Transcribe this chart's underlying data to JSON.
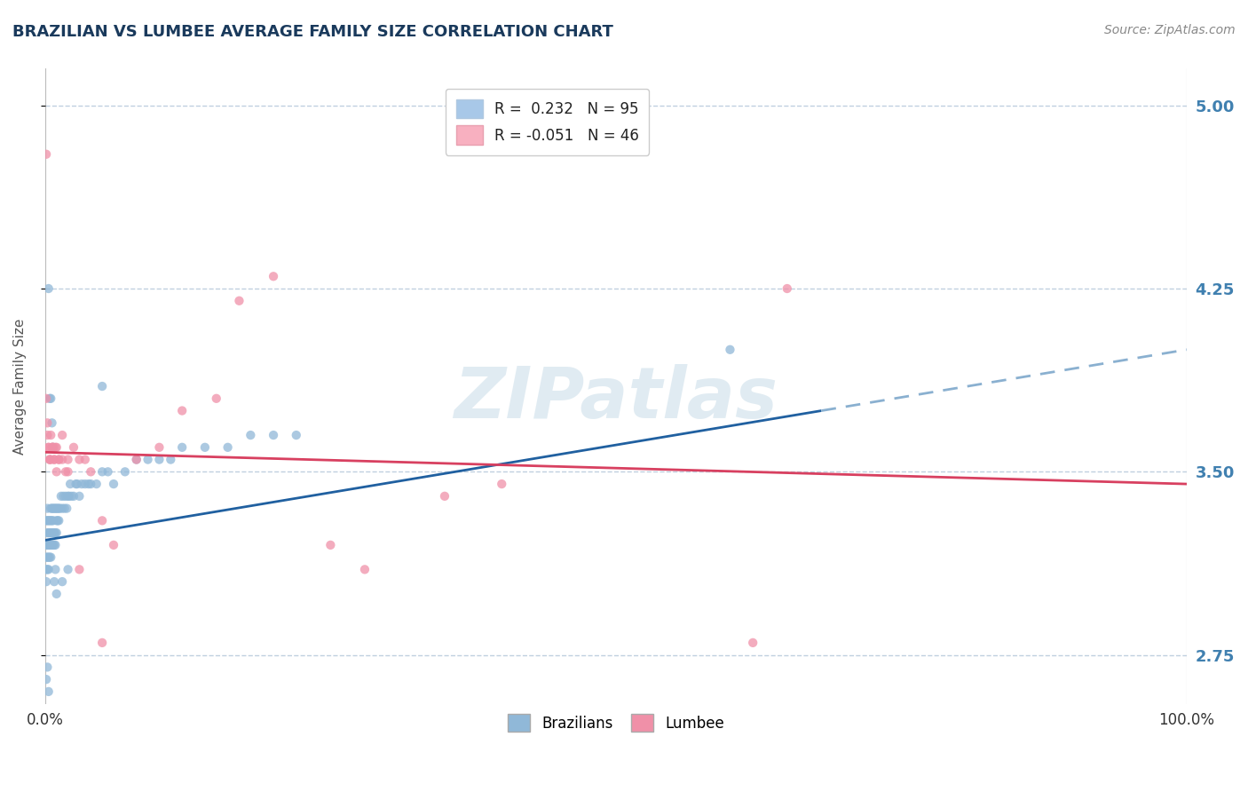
{
  "title": "BRAZILIAN VS LUMBEE AVERAGE FAMILY SIZE CORRELATION CHART",
  "source_text": "Source: ZipAtlas.com",
  "ylabel": "Average Family Size",
  "xlim": [
    0,
    1
  ],
  "ylim": [
    2.55,
    5.15
  ],
  "yticks": [
    2.75,
    3.5,
    4.25,
    5.0
  ],
  "xtick_labels": [
    "0.0%",
    "100.0%"
  ],
  "legend_entries": [
    {
      "label": "R =  0.232   N = 95",
      "facecolor": "#a8c8e8"
    },
    {
      "label": "R = -0.051   N = 46",
      "facecolor": "#f8b0c0"
    }
  ],
  "brazilian_color": "#90b8d8",
  "lumbee_color": "#f090a8",
  "trend_brazilian_color": "#2060a0",
  "trend_lumbee_color": "#d84060",
  "trend_brazilian_dashed_color": "#8ab0d0",
  "watermark_text": "ZIPatlas",
  "watermark_color": "#c8dce8",
  "background_color": "#ffffff",
  "grid_color": "#c0d0e0",
  "title_color": "#1a3a5c",
  "ylabel_color": "#555555",
  "tick_color": "#4080b0",
  "source_color": "#888888",
  "bottom_legend_labels": [
    "Brazilians",
    "Lumbee"
  ],
  "brazilians_x": [
    0.001,
    0.001,
    0.001,
    0.001,
    0.001,
    0.002,
    0.002,
    0.002,
    0.002,
    0.002,
    0.002,
    0.003,
    0.003,
    0.003,
    0.003,
    0.003,
    0.004,
    0.004,
    0.004,
    0.004,
    0.005,
    0.005,
    0.005,
    0.005,
    0.005,
    0.006,
    0.006,
    0.006,
    0.006,
    0.007,
    0.007,
    0.007,
    0.007,
    0.008,
    0.008,
    0.008,
    0.009,
    0.009,
    0.009,
    0.01,
    0.01,
    0.01,
    0.011,
    0.011,
    0.012,
    0.012,
    0.013,
    0.014,
    0.015,
    0.016,
    0.017,
    0.018,
    0.019,
    0.02,
    0.021,
    0.022,
    0.023,
    0.025,
    0.027,
    0.028,
    0.03,
    0.032,
    0.035,
    0.038,
    0.04,
    0.045,
    0.05,
    0.055,
    0.06,
    0.07,
    0.08,
    0.09,
    0.1,
    0.11,
    0.12,
    0.14,
    0.16,
    0.18,
    0.2,
    0.22,
    0.001,
    0.002,
    0.003,
    0.003,
    0.004,
    0.005,
    0.006,
    0.007,
    0.008,
    0.009,
    0.01,
    0.015,
    0.02,
    0.05,
    0.6
  ],
  "brazilians_y": [
    3.2,
    3.1,
    3.3,
    3.15,
    3.05,
    3.25,
    3.3,
    3.1,
    3.2,
    3.15,
    3.35,
    3.25,
    3.2,
    3.3,
    3.1,
    3.15,
    3.3,
    3.2,
    3.25,
    3.15,
    3.35,
    3.25,
    3.2,
    3.3,
    3.15,
    3.35,
    3.25,
    3.2,
    3.3,
    3.35,
    3.25,
    3.2,
    3.3,
    3.35,
    3.25,
    3.2,
    3.35,
    3.25,
    3.2,
    3.35,
    3.25,
    3.3,
    3.35,
    3.3,
    3.35,
    3.3,
    3.35,
    3.4,
    3.35,
    3.4,
    3.35,
    3.4,
    3.35,
    3.4,
    3.4,
    3.45,
    3.4,
    3.4,
    3.45,
    3.45,
    3.4,
    3.45,
    3.45,
    3.45,
    3.45,
    3.45,
    3.5,
    3.5,
    3.45,
    3.5,
    3.55,
    3.55,
    3.55,
    3.55,
    3.6,
    3.6,
    3.6,
    3.65,
    3.65,
    3.65,
    2.65,
    2.7,
    2.6,
    4.25,
    3.8,
    3.8,
    3.7,
    3.6,
    3.05,
    3.1,
    3.0,
    3.05,
    3.1,
    3.85,
    4.0
  ],
  "lumbee_x": [
    0.001,
    0.002,
    0.003,
    0.004,
    0.005,
    0.006,
    0.007,
    0.008,
    0.009,
    0.01,
    0.012,
    0.015,
    0.018,
    0.02,
    0.025,
    0.03,
    0.035,
    0.04,
    0.05,
    0.06,
    0.08,
    0.1,
    0.12,
    0.15,
    0.17,
    0.2,
    0.25,
    0.28,
    0.35,
    0.4,
    0.001,
    0.002,
    0.003,
    0.004,
    0.005,
    0.006,
    0.007,
    0.008,
    0.01,
    0.012,
    0.015,
    0.02,
    0.03,
    0.05,
    0.62,
    0.65
  ],
  "lumbee_y": [
    4.8,
    3.7,
    3.6,
    3.55,
    3.65,
    3.6,
    3.6,
    3.55,
    3.6,
    3.5,
    3.55,
    3.55,
    3.5,
    3.55,
    3.6,
    3.55,
    3.55,
    3.5,
    3.3,
    3.2,
    3.55,
    3.6,
    3.75,
    3.8,
    4.2,
    4.3,
    3.2,
    3.1,
    3.4,
    3.45,
    3.8,
    3.65,
    3.6,
    3.55,
    3.55,
    3.6,
    3.6,
    3.55,
    3.6,
    3.55,
    3.65,
    3.5,
    3.1,
    2.8,
    2.8,
    4.25
  ],
  "trend_braz_x0": 0.0,
  "trend_braz_y0": 3.22,
  "trend_braz_x1": 0.68,
  "trend_braz_y1": 3.75,
  "trend_braz_dash_x0": 0.68,
  "trend_braz_dash_y0": 3.75,
  "trend_braz_dash_x1": 1.0,
  "trend_braz_dash_y1": 4.0,
  "trend_lumb_x0": 0.0,
  "trend_lumb_y0": 3.58,
  "trend_lumb_x1": 1.0,
  "trend_lumb_y1": 3.45
}
